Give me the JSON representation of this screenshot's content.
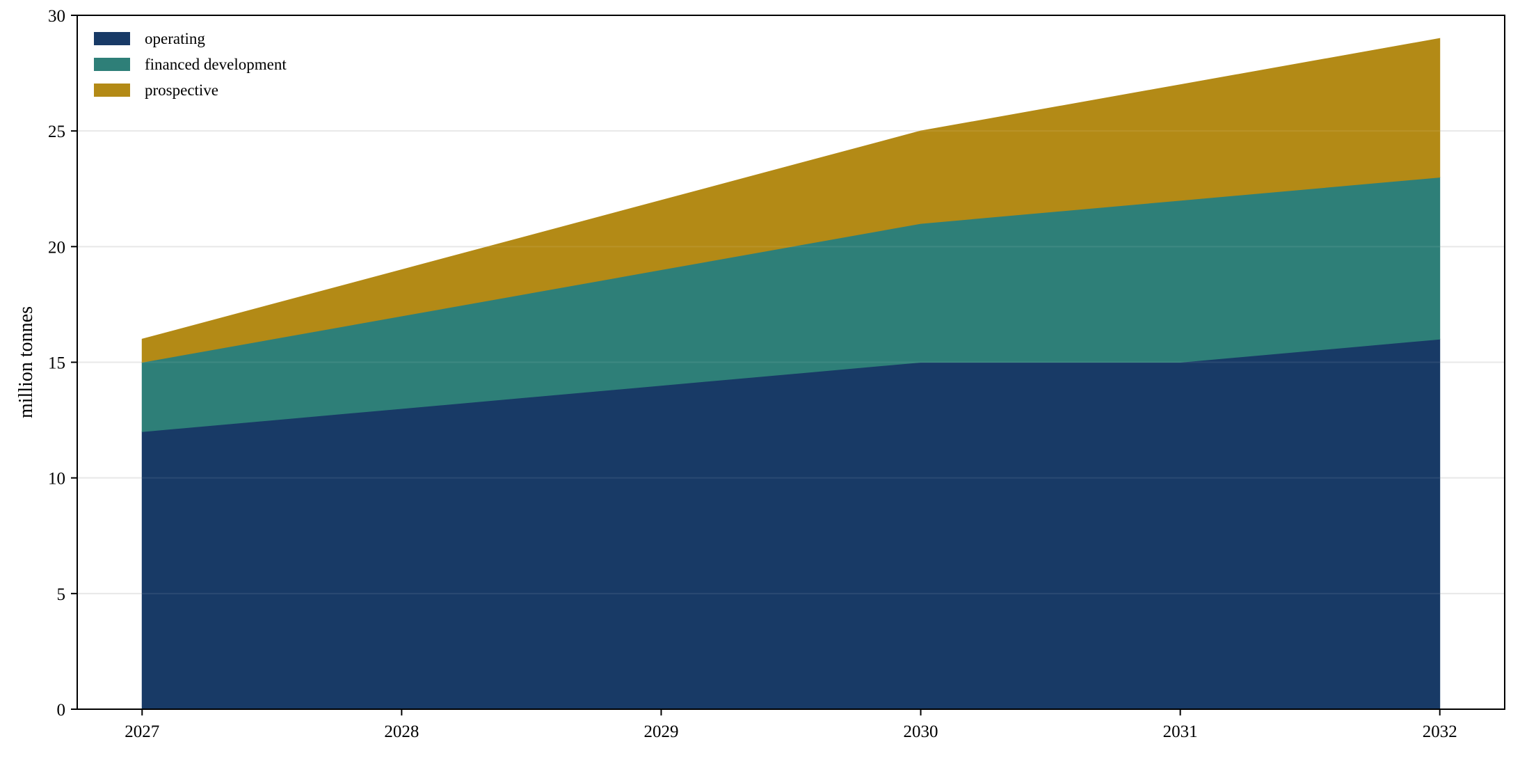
{
  "chart_data": {
    "type": "area",
    "stacked": true,
    "title": "",
    "xlabel": "",
    "ylabel": "million tonnes",
    "x": [
      2027,
      2028,
      2029,
      2030,
      2031,
      2032
    ],
    "x_tick_labels": [
      "2027",
      "2028",
      "2029",
      "2030",
      "2031",
      "2032"
    ],
    "xlim": [
      2026.75,
      2032.25
    ],
    "ylim": [
      0,
      30
    ],
    "y_ticks": [
      0,
      5,
      10,
      15,
      20,
      25,
      30
    ],
    "y_tick_labels": [
      "0",
      "5",
      "10",
      "15",
      "20",
      "25",
      "30"
    ],
    "grid": "horizontal",
    "legend_position": "top-left",
    "series": [
      {
        "name": "operating",
        "color": "#183a66",
        "values": [
          12,
          13,
          14,
          15,
          15,
          16
        ]
      },
      {
        "name": "financed development",
        "color": "#2e7f78",
        "values": [
          3,
          4,
          5,
          6,
          7,
          7
        ]
      },
      {
        "name": "prospective",
        "color": "#b38a16",
        "values": [
          1,
          2,
          3,
          4,
          5,
          6
        ]
      }
    ]
  }
}
